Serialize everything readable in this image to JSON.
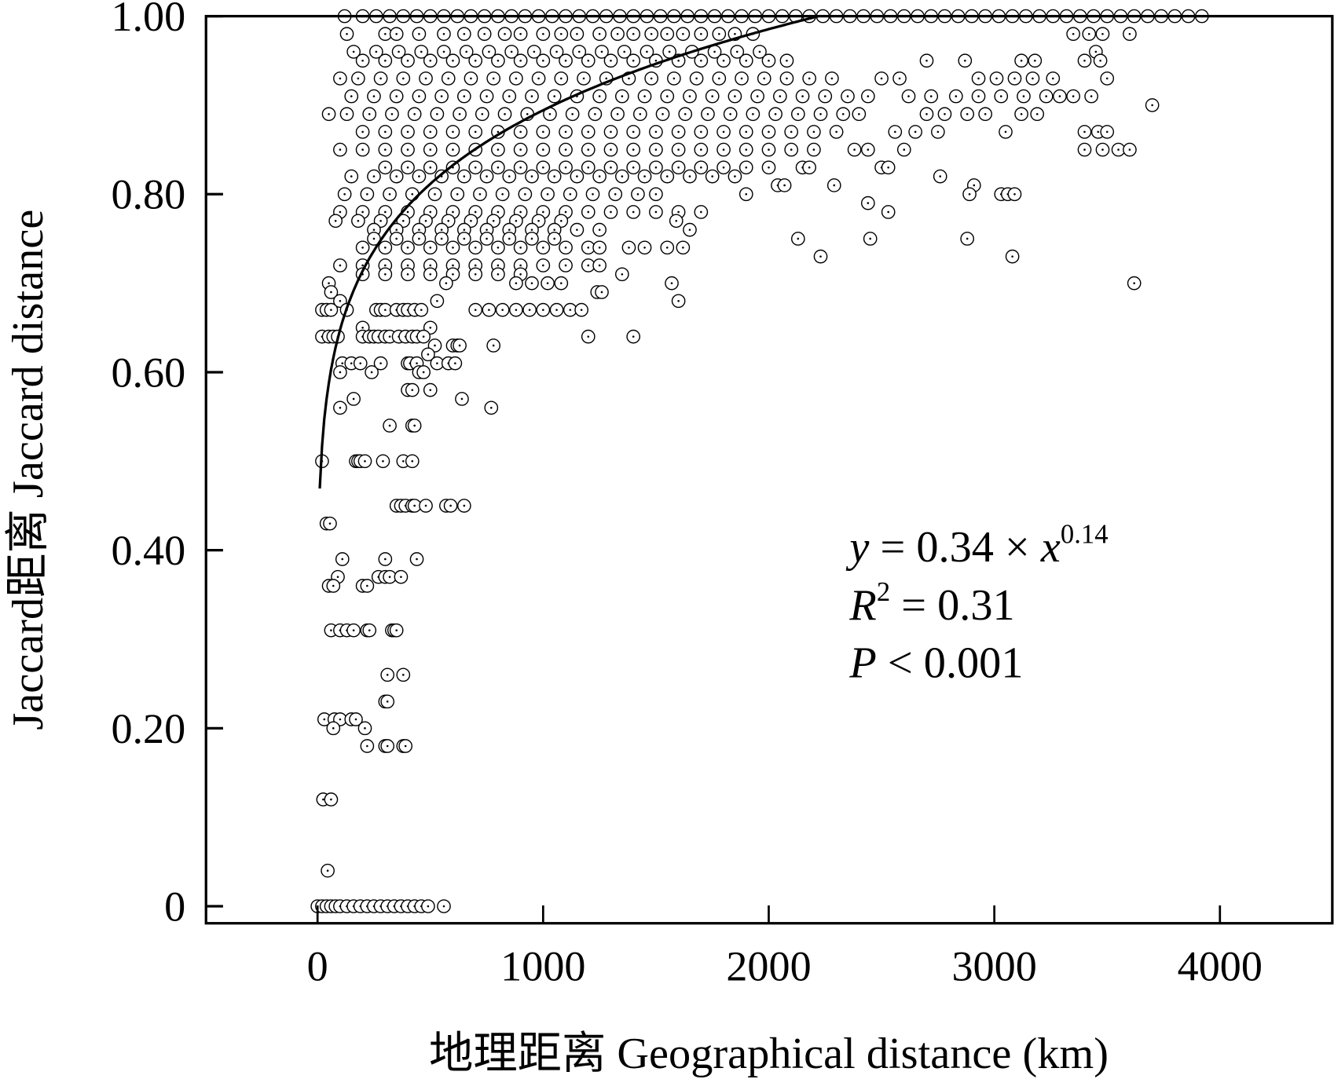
{
  "chart_data": {
    "type": "scatter",
    "xlabel": "地理距离 Geographical distance (km)",
    "ylabel": "Jaccard距离 Jaccard distance",
    "xlim": [
      -500,
      4500
    ],
    "ylim": [
      -0.02,
      1.0
    ],
    "xticks": [
      "0",
      "1000",
      "2000",
      "3000",
      "4000"
    ],
    "xtick_values": [
      0,
      1000,
      2000,
      3000,
      4000
    ],
    "yticks": [
      "0",
      "0.20",
      "0.40",
      "0.60",
      "0.80",
      "1.00"
    ],
    "ytick_values": [
      0,
      0.2,
      0.4,
      0.6,
      0.8,
      1.0
    ],
    "grid": false,
    "marker": "open circle with center dot",
    "fit": {
      "type": "power",
      "a": 0.34,
      "b": 0.14,
      "equation_parts": {
        "y": "y",
        "eq": " = 0.34 × ",
        "x": "x",
        "exp": "0.14"
      },
      "r2_parts": {
        "r": "R",
        "sup": "2",
        "rest": " = 0.31"
      },
      "p_parts": {
        "p": "P",
        "rest": " < 0.001"
      }
    },
    "rows": [
      {
        "y": 1.0,
        "x": [
          120,
          200,
          260,
          320,
          380,
          440,
          500,
          560,
          620,
          680,
          740,
          800,
          860,
          920,
          980,
          1040,
          1100,
          1160,
          1220,
          1280,
          1340,
          1400,
          1460,
          1520,
          1580,
          1640,
          1700,
          1760,
          1820,
          1880,
          1940,
          2000,
          2060,
          2120,
          2180,
          2240,
          2300,
          2360,
          2420,
          2480,
          2540,
          2600,
          2660,
          2720,
          2780,
          2840,
          2900,
          2960,
          3020,
          3080,
          3140,
          3200,
          3260,
          3320,
          3380,
          3440,
          3500,
          3560,
          3620,
          3680,
          3740,
          3800,
          3860,
          3920
        ]
      },
      {
        "y": 0.98,
        "x": [
          130,
          300,
          350,
          450,
          560,
          650,
          740,
          830,
          900,
          1000,
          1080,
          1150,
          1250,
          1330,
          1400,
          1480,
          1550,
          1620,
          1700,
          1780,
          1850,
          1930,
          3350,
          3420,
          3480,
          3600
        ]
      },
      {
        "y": 0.96,
        "x": [
          160,
          260,
          360,
          460,
          560,
          660,
          760,
          860,
          960,
          1060,
          1160,
          1260,
          1360,
          1460,
          1560,
          1660,
          1760,
          1860,
          1960,
          3450
        ]
      },
      {
        "y": 0.95,
        "x": [
          200,
          300,
          400,
          500,
          600,
          700,
          800,
          900,
          1000,
          1100,
          1200,
          1300,
          1400,
          1500,
          1600,
          1700,
          1800,
          1900,
          2000,
          2080,
          2700,
          2870,
          3120,
          3180,
          3400,
          3470
        ]
      },
      {
        "y": 0.93,
        "x": [
          100,
          180,
          280,
          380,
          480,
          580,
          680,
          780,
          880,
          980,
          1080,
          1180,
          1280,
          1380,
          1480,
          1580,
          1680,
          1780,
          1880,
          1980,
          2080,
          2180,
          2280,
          2500,
          2580,
          2930,
          3010,
          3090,
          3170,
          3260,
          3500
        ]
      },
      {
        "y": 0.91,
        "x": [
          150,
          250,
          350,
          450,
          550,
          650,
          750,
          850,
          950,
          1050,
          1150,
          1250,
          1350,
          1450,
          1550,
          1650,
          1750,
          1850,
          1950,
          2050,
          2150,
          2250,
          2350,
          2440,
          2620,
          2720,
          2830,
          2930,
          3030,
          3130,
          3230,
          3290,
          3350,
          3430
        ]
      },
      {
        "y": 0.89,
        "x": [
          50,
          130,
          230,
          330,
          430,
          530,
          630,
          730,
          830,
          930,
          1030,
          1130,
          1230,
          1330,
          1430,
          1530,
          1630,
          1730,
          1830,
          1930,
          2030,
          2130,
          2230,
          2330,
          2400,
          2700,
          2780,
          2880,
          2960,
          3120,
          3190
        ]
      },
      {
        "y": 0.9,
        "x": [
          3700
        ]
      },
      {
        "y": 0.87,
        "x": [
          200,
          300,
          400,
          500,
          600,
          700,
          800,
          900,
          1000,
          1100,
          1200,
          1300,
          1400,
          1500,
          1600,
          1700,
          1800,
          1900,
          2000,
          2100,
          2200,
          2300,
          2560,
          2650,
          2750,
          3050,
          3400,
          3460,
          3500
        ]
      },
      {
        "y": 0.85,
        "x": [
          100,
          200,
          300,
          400,
          500,
          600,
          700,
          800,
          900,
          1000,
          1100,
          1200,
          1300,
          1400,
          1500,
          1600,
          1700,
          1800,
          1900,
          2000,
          2100,
          2200,
          2380,
          2440,
          2600,
          3400,
          3480,
          3550,
          3600
        ]
      },
      {
        "y": 0.83,
        "x": [
          300,
          400,
          500,
          600,
          700,
          800,
          900,
          1000,
          1100,
          1200,
          1300,
          1400,
          1500,
          1600,
          1700,
          1800,
          1900,
          2000,
          2150,
          2180,
          2500,
          2530
        ]
      },
      {
        "y": 0.82,
        "x": [
          150,
          250,
          350,
          450,
          550,
          650,
          750,
          850,
          950,
          1050,
          1150,
          1250,
          1350,
          1450,
          1550,
          1650,
          1750,
          1850,
          2760
        ]
      },
      {
        "y": 0.81,
        "x": [
          2040,
          2070,
          2290,
          2910
        ]
      },
      {
        "y": 0.8,
        "x": [
          120,
          220,
          320,
          420,
          520,
          620,
          720,
          820,
          920,
          1020,
          1120,
          1220,
          1320,
          1420,
          1500,
          1900,
          2890,
          3030,
          3060,
          3090
        ]
      },
      {
        "y": 0.79,
        "x": [
          2440
        ]
      },
      {
        "y": 0.78,
        "x": [
          100,
          200,
          300,
          400,
          500,
          600,
          700,
          800,
          900,
          1000,
          1100,
          1200,
          1300,
          1400,
          1500,
          1600,
          1700,
          2530
        ]
      },
      {
        "y": 0.77,
        "x": [
          80,
          180,
          280,
          380,
          480,
          580,
          680,
          780,
          880,
          980,
          1080,
          1590
        ]
      },
      {
        "y": 0.76,
        "x": [
          250,
          350,
          450,
          550,
          650,
          750,
          850,
          950,
          1050,
          1150,
          1250,
          1650
        ]
      },
      {
        "y": 0.75,
        "x": [
          250,
          350,
          450,
          550,
          650,
          750,
          850,
          950,
          1050,
          2130,
          2450,
          2880
        ]
      },
      {
        "y": 0.74,
        "x": [
          200,
          300,
          400,
          500,
          600,
          700,
          800,
          900,
          1000,
          1100,
          1200,
          1250,
          1380,
          1450,
          1550,
          1620
        ]
      },
      {
        "y": 0.73,
        "x": [
          2230,
          3080
        ]
      },
      {
        "y": 0.72,
        "x": [
          100,
          200,
          300,
          400,
          500,
          600,
          700,
          800,
          900,
          1000,
          1100,
          1200,
          1250
        ]
      },
      {
        "y": 0.71,
        "x": [
          200,
          300,
          400,
          500,
          600,
          700,
          800,
          900,
          1350
        ]
      },
      {
        "y": 0.7,
        "x": [
          50,
          570,
          880,
          950,
          1020,
          1080,
          1570,
          3620
        ]
      },
      {
        "y": 0.69,
        "x": [
          60,
          1240,
          1260
        ]
      },
      {
        "y": 0.68,
        "x": [
          100,
          530,
          1600
        ]
      },
      {
        "y": 0.67,
        "x": [
          20,
          40,
          60,
          130,
          260,
          280,
          300,
          350,
          380,
          400,
          430,
          460,
          700,
          760,
          820,
          880,
          940,
          1000,
          1060,
          1120,
          1170
        ]
      },
      {
        "y": 0.65,
        "x": [
          200,
          500
        ]
      },
      {
        "y": 0.64,
        "x": [
          20,
          50,
          70,
          90,
          200,
          230,
          250,
          270,
          300,
          320,
          360,
          390,
          420,
          440,
          470,
          1200,
          1400
        ]
      },
      {
        "y": 0.63,
        "x": [
          520,
          600,
          620,
          630,
          780
        ]
      },
      {
        "y": 0.62,
        "x": [
          490
        ]
      },
      {
        "y": 0.61,
        "x": [
          110,
          150,
          190,
          280,
          400,
          410,
          440,
          530,
          580,
          610
        ]
      },
      {
        "y": 0.6,
        "x": [
          100,
          240,
          450,
          470
        ]
      },
      {
        "y": 0.58,
        "x": [
          400,
          420,
          500
        ]
      },
      {
        "y": 0.57,
        "x": [
          160,
          640
        ]
      },
      {
        "y": 0.56,
        "x": [
          100,
          770
        ]
      },
      {
        "y": 0.54,
        "x": [
          320,
          420,
          430
        ]
      },
      {
        "y": 0.5,
        "x": [
          20,
          170,
          180,
          190,
          210,
          290,
          380,
          420
        ]
      },
      {
        "y": 0.45,
        "x": [
          350,
          370,
          390,
          420,
          430,
          480,
          570,
          590,
          650
        ]
      },
      {
        "y": 0.43,
        "x": [
          40,
          55
        ]
      },
      {
        "y": 0.39,
        "x": [
          110,
          300,
          440
        ]
      },
      {
        "y": 0.37,
        "x": [
          90,
          270,
          300,
          320,
          370
        ]
      },
      {
        "y": 0.36,
        "x": [
          50,
          70,
          200,
          220
        ]
      },
      {
        "y": 0.31,
        "x": [
          60,
          100,
          130,
          160,
          220,
          230,
          330,
          340,
          350
        ]
      },
      {
        "y": 0.26,
        "x": [
          310,
          380
        ]
      },
      {
        "y": 0.23,
        "x": [
          300,
          310
        ]
      },
      {
        "y": 0.21,
        "x": [
          30,
          75,
          100,
          150,
          170
        ]
      },
      {
        "y": 0.2,
        "x": [
          70,
          210
        ]
      },
      {
        "y": 0.18,
        "x": [
          220,
          300,
          310,
          380,
          390
        ]
      },
      {
        "y": 0.12,
        "x": [
          25,
          60
        ]
      },
      {
        "y": 0.04,
        "x": [
          45
        ]
      },
      {
        "y": 0.0,
        "x": [
          0,
          20,
          40,
          60,
          80,
          100,
          130,
          160,
          190,
          220,
          250,
          280,
          310,
          340,
          370,
          400,
          430,
          460,
          490,
          560
        ]
      }
    ]
  }
}
